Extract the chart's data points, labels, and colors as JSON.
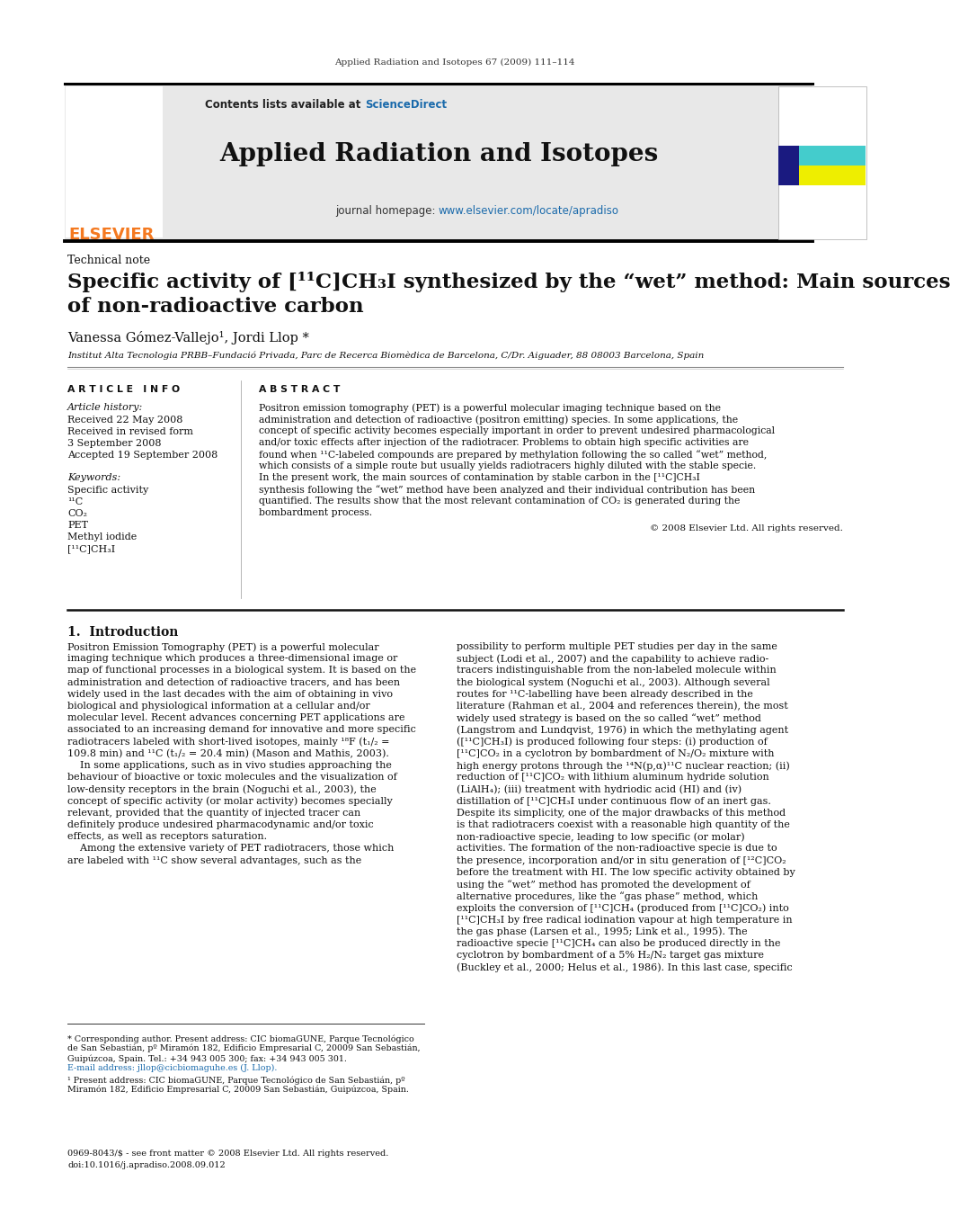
{
  "journal_ref": "Applied Radiation and Isotopes 67 (2009) 111–114",
  "header_bg": "#e8e8e8",
  "contents_text": "Contents lists available at ",
  "sciencedirect_text": "ScienceDirect",
  "sciencedirect_color": "#1a6aab",
  "journal_title": "Applied Radiation and Isotopes",
  "journal_homepage_prefix": "journal homepage: ",
  "journal_url": "www.elsevier.com/locate/apradiso",
  "journal_url_color": "#1a6aab",
  "elsevier_color": "#f47920",
  "section_label": "Technical note",
  "article_title_line1": "Specific activity of [¹¹C]CH₃I synthesized by the “wet” method: Main sources",
  "article_title_line2": "of non-radioactive carbon",
  "authors": "Vanessa Gómez-Vallejo¹, Jordi Llop *",
  "affiliation": "Institut Alta Tecnologia PRBB–Fundació Privada, Parc de Recerca Biomèdica de Barcelona, C/Dr. Aiguader, 88 08003 Barcelona, Spain",
  "article_info_spaced": "A R T I C L E   I N F O",
  "abstract_spaced": "A B S T R A C T",
  "article_history_label": "Article history:",
  "received1": "Received 22 May 2008",
  "received2": "Received in revised form",
  "received2b": "3 September 2008",
  "accepted": "Accepted 19 September 2008",
  "keywords_label": "Keywords:",
  "keywords": [
    "Specific activity",
    "¹¹C",
    "CO₂",
    "PET",
    "Methyl iodide",
    "[¹¹C]CH₃I"
  ],
  "copyright": "© 2008 Elsevier Ltd. All rights reserved.",
  "intro_heading": "1.  Introduction",
  "bottom_line1": "0969-8043/$ - see front matter © 2008 Elsevier Ltd. All rights reserved.",
  "bottom_line2": "doi:10.1016/j.apradiso.2008.09.012",
  "bg_color": "#ffffff",
  "text_color": "#000000",
  "abstract_lines": [
    "Positron emission tomography (PET) is a powerful molecular imaging technique based on the",
    "administration and detection of radioactive (positron emitting) species. In some applications, the",
    "concept of specific activity becomes especially important in order to prevent undesired pharmacological",
    "and/or toxic effects after injection of the radiotracer. Problems to obtain high specific activities are",
    "found when ¹¹C-labeled compounds are prepared by methylation following the so called “wet” method,",
    "which consists of a simple route but usually yields radiotracers highly diluted with the stable specie.",
    "In the present work, the main sources of contamination by stable carbon in the [¹¹C]CH₃I",
    "synthesis following the “wet” method have been analyzed and their individual contribution has been",
    "quantified. The results show that the most relevant contamination of CO₂ is generated during the",
    "bombardment process."
  ],
  "intro_col1_lines": [
    "Positron Emission Tomography (PET) is a powerful molecular",
    "imaging technique which produces a three-dimensional image or",
    "map of functional processes in a biological system. It is based on the",
    "administration and detection of radioactive tracers, and has been",
    "widely used in the last decades with the aim of obtaining in vivo",
    "biological and physiological information at a cellular and/or",
    "molecular level. Recent advances concerning PET applications are",
    "associated to an increasing demand for innovative and more specific",
    "radiotracers labeled with short-lived isotopes, mainly ¹⁸F (t₁/₂ =",
    "109.8 min) and ¹¹C (t₁/₂ = 20.4 min) (Mason and Mathis, 2003).",
    "    In some applications, such as in vivo studies approaching the",
    "behaviour of bioactive or toxic molecules and the visualization of",
    "low-density receptors in the brain (Noguchi et al., 2003), the",
    "concept of specific activity (or molar activity) becomes specially",
    "relevant, provided that the quantity of injected tracer can",
    "definitely produce undesired pharmacodynamic and/or toxic",
    "effects, as well as receptors saturation.",
    "    Among the extensive variety of PET radiotracers, those which",
    "are labeled with ¹¹C show several advantages, such as the"
  ],
  "intro_col2_lines": [
    "possibility to perform multiple PET studies per day in the same",
    "subject (Lodi et al., 2007) and the capability to achieve radio-",
    "tracers indistinguishable from the non-labeled molecule within",
    "the biological system (Noguchi et al., 2003). Although several",
    "routes for ¹¹C-labelling have been already described in the",
    "literature (Rahman et al., 2004 and references therein), the most",
    "widely used strategy is based on the so called “wet” method",
    "(Langstrom and Lundqvist, 1976) in which the methylating agent",
    "([¹¹C]CH₃I) is produced following four steps: (i) production of",
    "[¹¹C]CO₂ in a cyclotron by bombardment of N₂/O₂ mixture with",
    "high energy protons through the ¹⁴N(p,α)¹¹C nuclear reaction; (ii)",
    "reduction of [¹¹C]CO₂ with lithium aluminum hydride solution",
    "(LiAlH₄); (iii) treatment with hydriodic acid (HI) and (iv)",
    "distillation of [¹¹C]CH₃I under continuous flow of an inert gas.",
    "Despite its simplicity, one of the major drawbacks of this method",
    "is that radiotracers coexist with a reasonable high quantity of the",
    "non-radioactive specie, leading to low specific (or molar)",
    "activities. The formation of the non-radioactive specie is due to",
    "the presence, incorporation and/or in situ generation of [¹²C]CO₂",
    "before the treatment with HI. The low specific activity obtained by",
    "using the “wet” method has promoted the development of",
    "alternative procedures, like the “gas phase” method, which",
    "exploits the conversion of [¹¹C]CH₄ (produced from [¹¹C]CO₂) into",
    "[¹¹C]CH₃I by free radical iodination vapour at high temperature in",
    "the gas phase (Larsen et al., 1995; Link et al., 1995). The",
    "radioactive specie [¹¹C]CH₄ can also be produced directly in the",
    "cyclotron by bombardment of a 5% H₂/N₂ target gas mixture",
    "(Buckley et al., 2000; Helus et al., 1986). In this last case, specific"
  ],
  "fn1_lines": [
    "* Corresponding author. Present address: CIC biomaGUNE, Parque Tecnológico",
    "de San Sebastián, pº Miramón 182, Edificio Empresarial C, 20009 San Sebastián,",
    "Guipúzcoa, Spain. Tel.: +34 943 005 300; fax: +34 943 005 301."
  ],
  "fn_email": "E-mail address: jllop@cicbiomaguhe.es (J. Llop).",
  "fn2_lines": [
    "¹ Present address: CIC biomaGUNE, Parque Tecnológico de San Sebastián, pº",
    "Miramón 182, Edificio Empresarial C, 20009 San Sebastián, Guipúzcoa, Spain."
  ]
}
